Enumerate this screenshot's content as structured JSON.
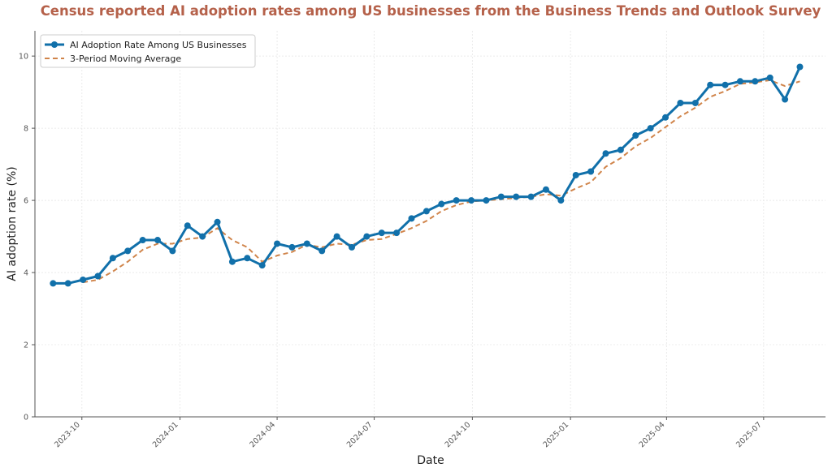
{
  "chart_data": {
    "type": "line",
    "title": "Census reported AI adoption rates among US businesses from the Business Trends and Outlook Survey",
    "xlabel": "Date",
    "ylabel": "AI adoption rate (%)",
    "ylim": [
      0,
      10.7
    ],
    "yticks": [
      0,
      2,
      4,
      6,
      8,
      10
    ],
    "xlim": [
      "2023-08-18",
      "2025-08-28"
    ],
    "xticks": [
      {
        "date": "2023-10-01",
        "label": "2023-10"
      },
      {
        "date": "2024-01-01",
        "label": "2024-01"
      },
      {
        "date": "2024-04-01",
        "label": "2024-04"
      },
      {
        "date": "2024-07-01",
        "label": "2024-07"
      },
      {
        "date": "2024-10-01",
        "label": "2024-10"
      },
      {
        "date": "2025-01-01",
        "label": "2025-01"
      },
      {
        "date": "2025-04-01",
        "label": "2025-04"
      },
      {
        "date": "2025-07-01",
        "label": "2025-07"
      }
    ],
    "grid": true,
    "legend_position": "top-left",
    "x": [
      "2023-09-04",
      "2023-09-18",
      "2023-10-02",
      "2023-10-16",
      "2023-10-30",
      "2023-11-13",
      "2023-11-27",
      "2023-12-11",
      "2023-12-25",
      "2024-01-08",
      "2024-01-22",
      "2024-02-05",
      "2024-02-19",
      "2024-03-04",
      "2024-03-18",
      "2024-04-01",
      "2024-04-15",
      "2024-04-29",
      "2024-05-13",
      "2024-05-27",
      "2024-06-10",
      "2024-06-24",
      "2024-07-08",
      "2024-07-22",
      "2024-08-05",
      "2024-08-19",
      "2024-09-02",
      "2024-09-16",
      "2024-09-30",
      "2024-10-14",
      "2024-10-28",
      "2024-11-11",
      "2024-11-25",
      "2024-12-09",
      "2024-12-23",
      "2025-01-06",
      "2025-01-20",
      "2025-02-03",
      "2025-02-17",
      "2025-03-03",
      "2025-03-17",
      "2025-03-31",
      "2025-04-14",
      "2025-04-28",
      "2025-05-12",
      "2025-05-26",
      "2025-06-09",
      "2025-06-23",
      "2025-07-07",
      "2025-07-21",
      "2025-08-04"
    ],
    "series": [
      {
        "name": "AI Adoption Rate Among US Businesses",
        "style": "solid-markers",
        "color": "#1170aa",
        "values": [
          3.7,
          3.7,
          3.8,
          3.9,
          4.4,
          4.6,
          4.9,
          4.9,
          4.6,
          5.3,
          5.0,
          5.4,
          4.3,
          4.4,
          4.2,
          4.8,
          4.7,
          4.8,
          4.6,
          5.0,
          4.7,
          5.0,
          5.1,
          5.1,
          5.5,
          5.7,
          5.9,
          6.0,
          6.0,
          6.0,
          6.1,
          6.1,
          6.1,
          6.3,
          6.0,
          6.7,
          6.8,
          7.3,
          7.4,
          7.8,
          8.0,
          8.3,
          8.7,
          8.7,
          9.2,
          9.2,
          9.3,
          9.3,
          9.4,
          8.8,
          9.7
        ]
      },
      {
        "name": "3-Period Moving Average",
        "style": "dashed",
        "color": "#d0844a",
        "values": [
          null,
          null,
          3.73,
          3.8,
          4.03,
          4.3,
          4.63,
          4.8,
          4.8,
          4.93,
          4.97,
          5.23,
          4.9,
          4.7,
          4.3,
          4.47,
          4.57,
          4.77,
          4.7,
          4.8,
          4.77,
          4.9,
          4.93,
          5.07,
          5.23,
          5.43,
          5.7,
          5.87,
          5.97,
          6.0,
          6.03,
          6.07,
          6.1,
          6.17,
          6.13,
          6.33,
          6.5,
          6.93,
          7.17,
          7.5,
          7.73,
          8.03,
          8.33,
          8.57,
          8.87,
          9.03,
          9.23,
          9.27,
          9.33,
          9.17,
          9.3
        ]
      }
    ]
  }
}
